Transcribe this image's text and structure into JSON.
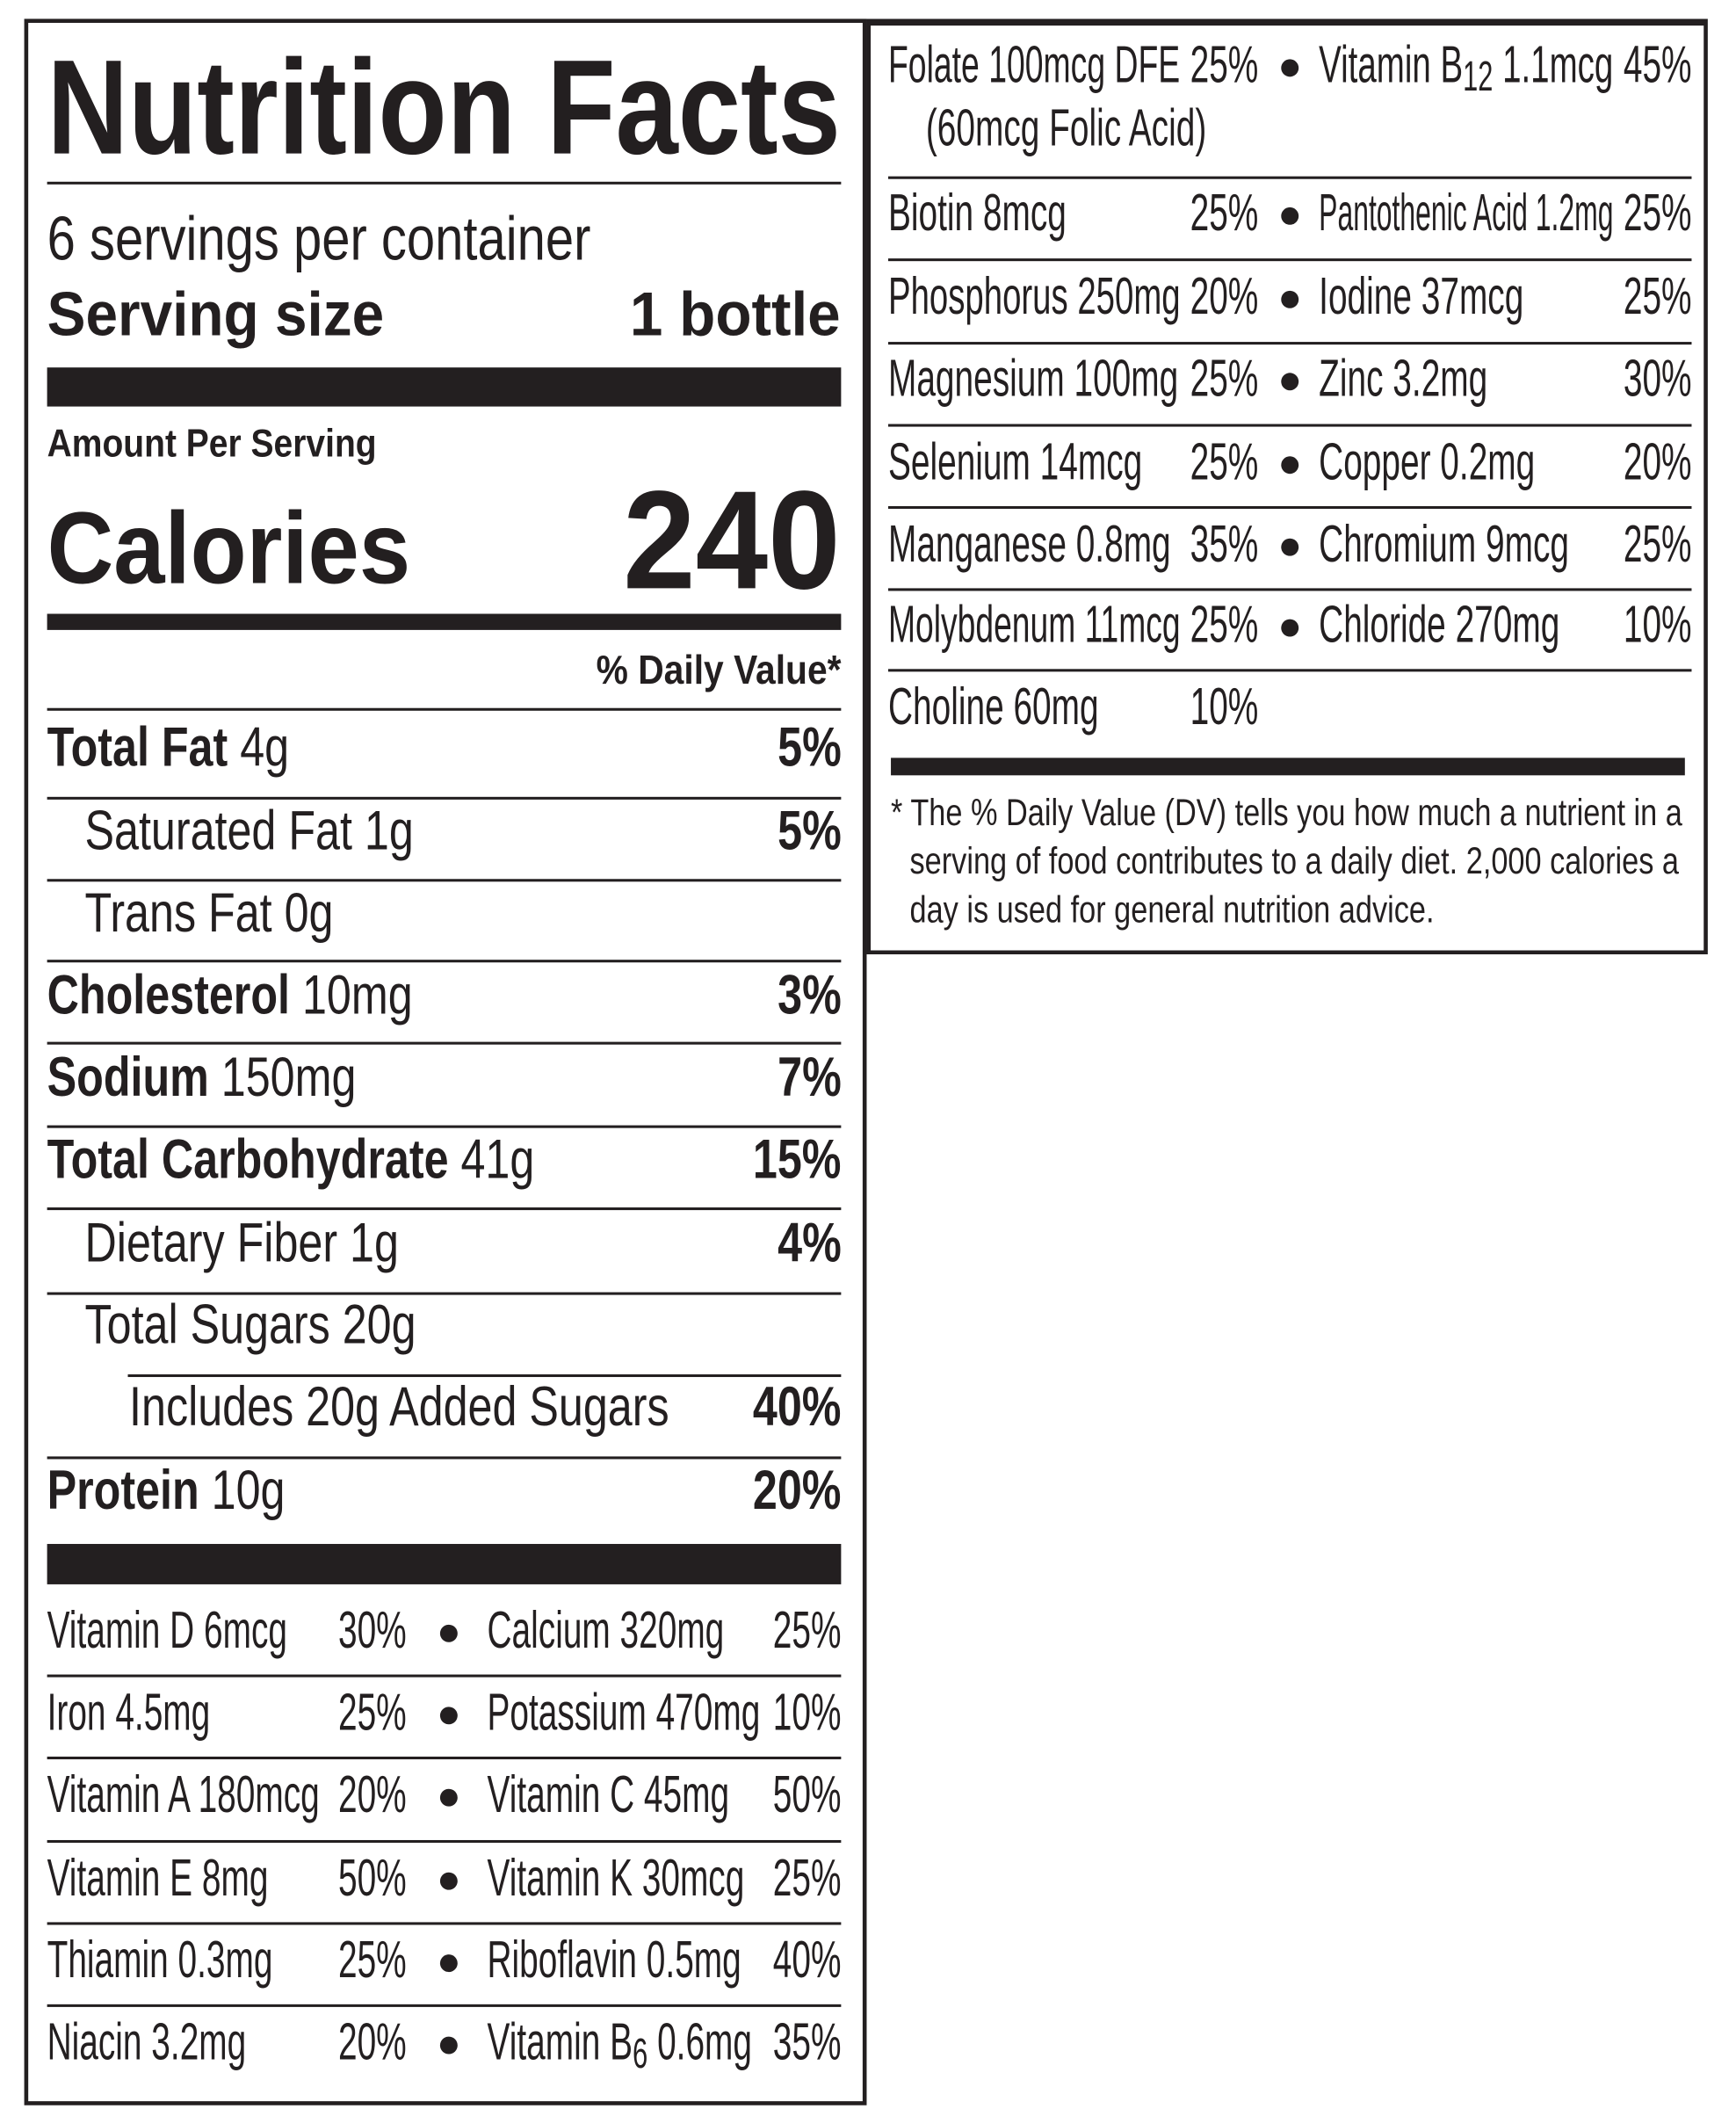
{
  "title": "Nutrition Facts",
  "servings_per_container": "6 servings per container",
  "serving_size": {
    "label": "Serving size",
    "value": "1 bottle"
  },
  "amount_per_serving": "Amount Per Serving",
  "calories": {
    "label": "Calories",
    "value": "240"
  },
  "daily_value_header": "% Daily Value*",
  "nutrients": [
    {
      "name": "Total Fat",
      "amount": " 4g",
      "dv": "5%",
      "bold": true,
      "indent": 0
    },
    {
      "name": "Saturated Fat 1g",
      "amount": "",
      "dv": "5%",
      "bold": false,
      "indent": 1
    },
    {
      "name": "Trans Fat 0g",
      "amount": "",
      "dv": "",
      "bold": false,
      "indent": 1
    },
    {
      "name": "Cholesterol",
      "amount": " 10mg",
      "dv": "3%",
      "bold": true,
      "indent": 0
    },
    {
      "name": "Sodium",
      "amount": " 150mg",
      "dv": "7%",
      "bold": true,
      "indent": 0
    },
    {
      "name": "Total Carbohydrate",
      "amount": " 41g",
      "dv": "15%",
      "bold": true,
      "indent": 0
    },
    {
      "name": "Dietary Fiber 1g",
      "amount": "",
      "dv": "4%",
      "bold": false,
      "indent": 1
    },
    {
      "name": "Total Sugars 20g",
      "amount": "",
      "dv": "",
      "bold": false,
      "indent": 1
    },
    {
      "name": "Includes 20g Added Sugars",
      "amount": "",
      "dv": "40%",
      "bold": false,
      "indent": 2
    },
    {
      "name": "Protein",
      "amount": " 10g",
      "dv": "20%",
      "bold": true,
      "indent": 0
    }
  ],
  "vitamins_left": [
    [
      {
        "name": "Vitamin D 6mcg",
        "dv": "30%"
      },
      {
        "name": "Calcium 320mg",
        "dv": "25%"
      }
    ],
    [
      {
        "name": "Iron 4.5mg",
        "dv": "25%"
      },
      {
        "name": "Potassium 470mg",
        "dv": "10%"
      }
    ],
    [
      {
        "name": "Vitamin A 180mcg",
        "dv": "20%"
      },
      {
        "name": "Vitamin C 45mg",
        "dv": "50%"
      }
    ],
    [
      {
        "name": "Vitamin E 8mg",
        "dv": "50%"
      },
      {
        "name": "Vitamin K 30mcg",
        "dv": "25%"
      }
    ],
    [
      {
        "name": "Thiamin 0.3mg",
        "dv": "25%"
      },
      {
        "name": "Riboflavin 0.5mg",
        "dv": "40%"
      }
    ],
    [
      {
        "name": "Niacin 3.2mg",
        "dv": "20%"
      },
      {
        "pre": "Vitamin B",
        "sub": "6",
        "post": " 0.6mg",
        "dv": "35%"
      }
    ]
  ],
  "vitamins_right": [
    [
      {
        "name": "Folate 100mcg DFE",
        "dv": "25%",
        "note": "(60mcg Folic Acid)"
      },
      {
        "pre": "Vitamin B",
        "sub": "12",
        "post": " 1.1mcg",
        "dv": "45%"
      }
    ],
    [
      {
        "name": "Biotin 8mcg",
        "dv": "25%"
      },
      {
        "name": "Pantothenic Acid 1.2mg",
        "dv": "25%"
      }
    ],
    [
      {
        "name": "Phosphorus 250mg",
        "dv": "20%"
      },
      {
        "name": "Iodine 37mcg",
        "dv": "25%"
      }
    ],
    [
      {
        "name": "Magnesium 100mg",
        "dv": "25%"
      },
      {
        "name": "Zinc 3.2mg",
        "dv": "30%"
      }
    ],
    [
      {
        "name": "Selenium 14mcg",
        "dv": "25%"
      },
      {
        "name": "Copper 0.2mg",
        "dv": "20%"
      }
    ],
    [
      {
        "name": "Manganese 0.8mg",
        "dv": "35%"
      },
      {
        "name": "Chromium 9mcg",
        "dv": "25%"
      }
    ],
    [
      {
        "name": "Molybdenum 11mcg",
        "dv": "25%"
      },
      {
        "name": "Chloride 270mg",
        "dv": "10%"
      }
    ],
    [
      {
        "name": "Choline 60mg",
        "dv": "10%"
      }
    ]
  ],
  "footnote": [
    "* The % Daily Value (DV) tells you how much a nutrient in a",
    "serving of food contributes to a daily diet. 2,000 calories a",
    "day is used for general nutrition advice."
  ]
}
